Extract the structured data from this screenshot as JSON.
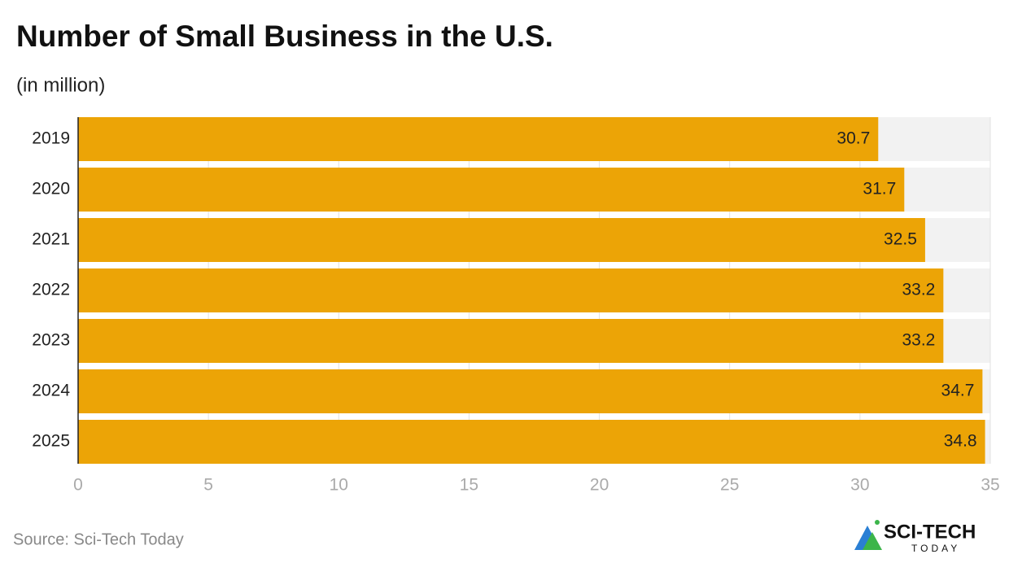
{
  "chart_data": {
    "type": "bar",
    "orientation": "horizontal",
    "title": "Number of Small Business in the U.S.",
    "subtitle": "(in million)",
    "categories": [
      "2019",
      "2020",
      "2021",
      "2022",
      "2023",
      "2024",
      "2025"
    ],
    "values": [
      30.7,
      31.7,
      32.5,
      33.2,
      33.2,
      34.7,
      34.8
    ],
    "color": "#eca406",
    "xlim": [
      0,
      35
    ],
    "xticks": [
      0,
      5,
      10,
      15,
      20,
      25,
      30,
      35
    ],
    "grid": true,
    "source": "Source: Sci-Tech Today"
  },
  "logo": {
    "name": "SCI-TECH",
    "tagline": "TODAY"
  }
}
